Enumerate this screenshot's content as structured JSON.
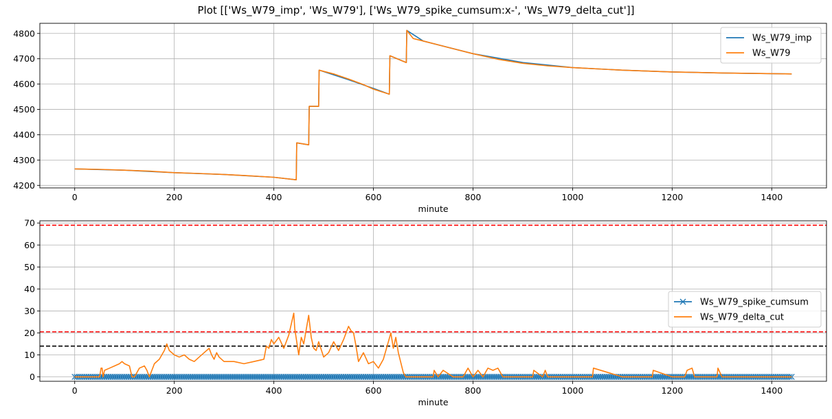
{
  "figure_title": "Plot [['Ws_W79_imp', 'Ws_W79'], ['Ws_W79_spike_cumsum:x-', 'Ws_W79_delta_cut']]",
  "chart_data": [
    {
      "type": "line",
      "xlabel": "minute",
      "ylabel": "",
      "xlim": [
        -70,
        1510
      ],
      "ylim": [
        4190,
        4840
      ],
      "xticks": [
        0,
        200,
        400,
        600,
        800,
        1000,
        1200,
        1400
      ],
      "yticks": [
        4200,
        4300,
        4400,
        4500,
        4600,
        4700,
        4800
      ],
      "grid": true,
      "legend_position": "top-right",
      "series": [
        {
          "name": "Ws_W79_imp",
          "color": "#1f77b4",
          "x": [
            0,
            100,
            200,
            300,
            400,
            445,
            446,
            470,
            471,
            490,
            491,
            550,
            600,
            632,
            633,
            666,
            667,
            700,
            800,
            900,
            1000,
            1100,
            1200,
            1300,
            1440
          ],
          "y": [
            4265,
            4260,
            4250,
            4243,
            4232,
            4222,
            4368,
            4360,
            4512,
            4512,
            4655,
            4617,
            4583,
            4560,
            4712,
            4685,
            4812,
            4770,
            4720,
            4685,
            4665,
            4655,
            4648,
            4644,
            4640
          ]
        },
        {
          "name": "Ws_W79",
          "color": "#ff7f0e",
          "x": [
            0,
            50,
            100,
            150,
            200,
            250,
            300,
            350,
            400,
            445,
            446,
            470,
            471,
            490,
            491,
            520,
            550,
            580,
            600,
            632,
            633,
            666,
            667,
            680,
            700,
            750,
            800,
            850,
            900,
            950,
            1000,
            1100,
            1200,
            1300,
            1440
          ],
          "y": [
            4265,
            4263,
            4260,
            4256,
            4250,
            4247,
            4243,
            4238,
            4232,
            4222,
            4368,
            4360,
            4512,
            4512,
            4655,
            4640,
            4620,
            4598,
            4580,
            4560,
            4712,
            4685,
            4812,
            4780,
            4770,
            4745,
            4720,
            4698,
            4682,
            4672,
            4665,
            4655,
            4648,
            4644,
            4640
          ]
        }
      ]
    },
    {
      "type": "line",
      "xlabel": "minute",
      "ylabel": "",
      "xlim": [
        -70,
        1510
      ],
      "ylim": [
        -2,
        71
      ],
      "xticks": [
        0,
        200,
        400,
        600,
        800,
        1000,
        1200,
        1400
      ],
      "yticks": [
        0,
        10,
        20,
        30,
        40,
        50,
        60,
        70
      ],
      "grid": true,
      "legend_position": "center-right",
      "hlines": [
        {
          "y": 69,
          "color": "#ff0000",
          "style": "dashed"
        },
        {
          "y": 20.5,
          "color": "#ff0000",
          "style": "dashed"
        },
        {
          "y": 14,
          "color": "#000000",
          "style": "dashed"
        }
      ],
      "series": [
        {
          "name": "Ws_W79_spike_cumsum",
          "color": "#1f77b4",
          "marker": "x",
          "x_range": [
            0,
            1440
          ],
          "value": 0
        },
        {
          "name": "Ws_W79_delta_cut",
          "color": "#ff7f0e",
          "x": [
            0,
            50,
            53,
            55,
            57,
            60,
            70,
            80,
            90,
            95,
            100,
            110,
            115,
            120,
            130,
            140,
            145,
            150,
            160,
            170,
            180,
            185,
            190,
            200,
            210,
            220,
            230,
            240,
            250,
            260,
            270,
            275,
            280,
            285,
            290,
            300,
            320,
            340,
            360,
            380,
            385,
            390,
            395,
            400,
            410,
            420,
            430,
            440,
            442,
            450,
            455,
            460,
            470,
            475,
            480,
            485,
            490,
            500,
            510,
            520,
            530,
            540,
            550,
            555,
            560,
            565,
            570,
            580,
            590,
            600,
            610,
            620,
            630,
            635,
            640,
            645,
            650,
            660,
            665,
            670,
            700,
            720,
            722,
            730,
            740,
            760,
            780,
            790,
            800,
            810,
            820,
            830,
            840,
            850,
            860,
            870,
            900,
            920,
            922,
            940,
            945,
            950,
            1000,
            1040,
            1042,
            1100,
            1160,
            1162,
            1200,
            1225,
            1230,
            1240,
            1245,
            1290,
            1292,
            1300,
            1440
          ],
          "y": [
            0,
            0,
            4,
            4,
            0,
            3,
            4,
            5,
            6,
            7,
            6,
            5,
            0,
            0,
            4,
            5,
            3,
            0,
            6,
            8,
            12,
            15,
            12,
            10,
            9,
            10,
            8,
            7,
            9,
            11,
            13,
            10,
            8,
            11,
            9,
            7,
            7,
            6,
            7,
            8,
            14,
            13,
            17,
            15,
            18,
            13,
            19,
            29,
            22,
            10,
            18,
            15,
            28,
            18,
            13,
            12,
            16,
            9,
            11,
            16,
            12,
            17,
            23,
            21,
            20,
            14,
            7,
            11,
            6,
            7,
            4,
            8,
            16,
            20,
            13,
            18,
            11,
            2,
            0,
            0,
            0,
            0,
            3,
            0,
            3,
            0,
            0,
            4,
            0,
            3,
            0,
            4,
            3,
            4,
            0,
            0,
            0,
            0,
            3,
            0,
            3,
            0,
            0,
            0,
            4,
            0,
            0,
            3,
            0,
            0,
            3,
            4,
            0,
            0,
            4,
            0,
            0
          ]
        }
      ]
    }
  ]
}
